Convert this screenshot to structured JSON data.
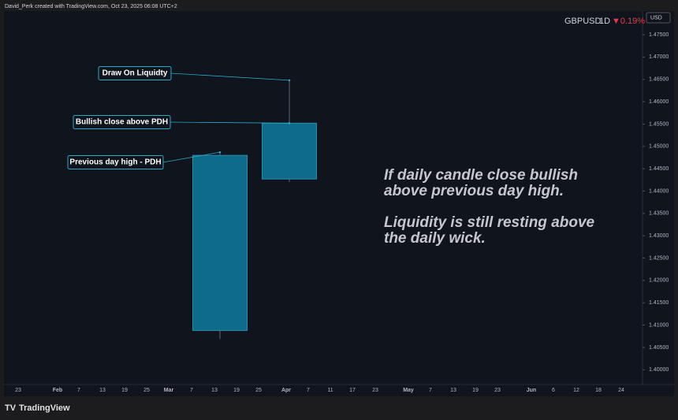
{
  "header": {
    "credit": "David_Perk created with TradingView.com, Oct 23, 2025 06:08 UTC+2"
  },
  "chart_data": {
    "type": "candlestick",
    "symbol": "GBPUSD",
    "interval": "1D",
    "change": {
      "value": -0.19,
      "label": "▼0.19%"
    },
    "currency": "USD",
    "candles": {
      "open": [
        1.4088,
        1.4427
      ],
      "high": [
        1.4487,
        1.4648
      ],
      "low": [
        1.4069,
        1.442
      ],
      "close": [
        1.448,
        1.4552
      ]
    },
    "color": "#0e6b8a",
    "ylim": [
      1.3967,
      1.4803
    ],
    "yticks": [
      {
        "value": 1.475,
        "label": "1.47500"
      },
      {
        "value": 1.47,
        "label": "1.47000"
      },
      {
        "value": 1.465,
        "label": "1.46500"
      },
      {
        "value": 1.46,
        "label": "1.46000"
      },
      {
        "value": 1.455,
        "label": "1.45500"
      },
      {
        "value": 1.45,
        "label": "1.45000"
      },
      {
        "value": 1.445,
        "label": "1.44500"
      },
      {
        "value": 1.44,
        "label": "1.44000"
      },
      {
        "value": 1.435,
        "label": "1.43500"
      },
      {
        "value": 1.43,
        "label": "1.43000"
      },
      {
        "value": 1.425,
        "label": "1.42500"
      },
      {
        "value": 1.42,
        "label": "1.42000"
      },
      {
        "value": 1.415,
        "label": "1.41500"
      },
      {
        "value": 1.41,
        "label": "1.41000"
      },
      {
        "value": 1.405,
        "label": "1.40500"
      },
      {
        "value": 1.4,
        "label": "1.40000"
      }
    ],
    "xticks": [
      "23",
      "Feb",
      "7",
      "13",
      "19",
      "25",
      "Mar",
      "7",
      "13",
      "19",
      "25",
      "Apr",
      "7",
      "11",
      "17",
      "23",
      "May",
      "7",
      "13",
      "19",
      "23",
      "Jun",
      "6",
      "12",
      "18",
      "24"
    ],
    "annotations": [
      "Draw On Liquidty",
      "Bullish close above PDH",
      "Previous day high - PDH"
    ],
    "notes": [
      "If daily candle close bullish",
      "above previous day high.",
      "Liquidity is still resting above",
      "the daily wick."
    ]
  },
  "branding": "TradingView"
}
